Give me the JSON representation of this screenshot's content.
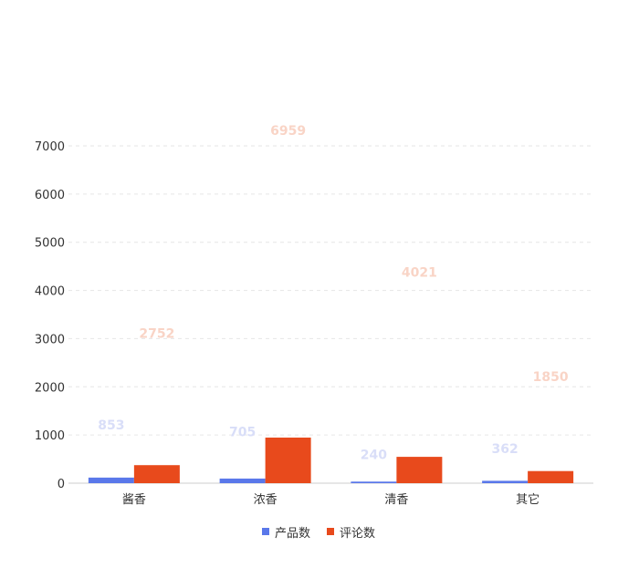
{
  "chart_data": {
    "type": "bar",
    "title": "",
    "xlabel": "",
    "ylabel": "",
    "categories": [
      "酱香",
      "浓香",
      "清香",
      "其它"
    ],
    "series": [
      {
        "name": "产品数",
        "values": [
          853,
          705,
          240,
          362
        ],
        "color": "#5a78ea"
      },
      {
        "name": "评论数",
        "values": [
          2752,
          6959,
          4021,
          1850
        ],
        "color": "#e84a1c"
      }
    ],
    "label_colors": [
      "#d9def8",
      "#f9d4c6"
    ],
    "ylim": [
      0,
      7000
    ],
    "yticks": [
      "0",
      "1000",
      "2000",
      "3000",
      "4000",
      "5000",
      "6000",
      "7000"
    ],
    "grid": true,
    "legend": "bottom"
  }
}
